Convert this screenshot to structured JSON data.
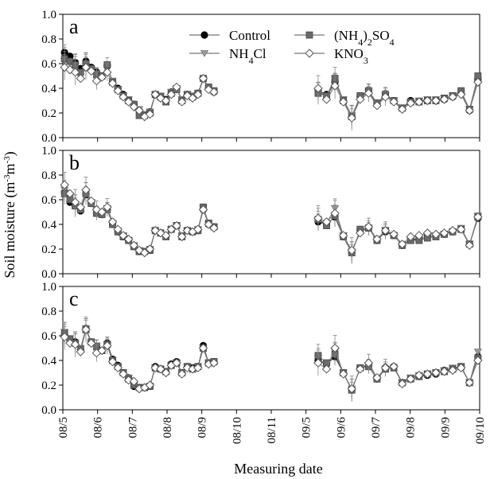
{
  "figure": {
    "ylabel_html": "Soil moisture (m<tspan baseline-shift='super' font-size='11'>-3</tspan>m<tspan baseline-shift='super' font-size='11'>-3</tspan>)",
    "ylabel": "Soil moisture (m-3m-3)",
    "xlabel": "Measuring date"
  },
  "legend": {
    "control": "Control",
    "nh4cl": "NH4Cl",
    "nh42so4": "(NH4)2SO4",
    "kno3": "KNO3"
  },
  "colors": {
    "control": "#000000",
    "nh4cl": "#9a9a9a",
    "nh42so4": "#6a6a6a",
    "kno3": "#ffffff",
    "line": "#555555"
  },
  "chart_data": {
    "type": "line",
    "x_ticks": [
      "08/5",
      "08/6",
      "08/7",
      "08/8",
      "08/9",
      "08/10",
      "08/11",
      "09/5",
      "09/6",
      "09/7",
      "09/8",
      "09/9",
      "09/10"
    ],
    "y_ticks": [
      0.0,
      0.2,
      0.4,
      0.6,
      0.8,
      1.0
    ],
    "ylim": [
      0,
      1.0
    ],
    "legend_position": "top",
    "panels": [
      {
        "label": "a",
        "series": [
          {
            "name": "Control",
            "marker": "circle-black",
            "seg1": [
              0.69,
              0.66,
              0.61,
              0.56,
              0.62,
              0.57,
              0.53,
              0.5,
              0.58,
              0.45,
              0.4,
              0.35,
              0.3,
              0.27,
              0.22,
              0.18,
              0.21,
              0.35,
              0.33,
              0.31,
              0.37,
              0.4,
              0.3,
              0.35,
              0.33,
              0.36,
              0.48,
              0.4,
              0.37
            ],
            "seg2": [
              0.38,
              0.35,
              0.45,
              0.3,
              0.17,
              0.33,
              0.38,
              0.28,
              0.35,
              0.3,
              0.24,
              0.3,
              0.29,
              0.3,
              0.3,
              0.31,
              0.33,
              0.36,
              0.22,
              0.47
            ]
          },
          {
            "name": "NH4Cl",
            "marker": "triangle-gray",
            "seg1": [
              0.62,
              0.6,
              0.58,
              0.52,
              0.58,
              0.55,
              0.52,
              0.5,
              0.57,
              0.46,
              0.39,
              0.34,
              0.31,
              0.26,
              0.23,
              0.19,
              0.21,
              0.35,
              0.34,
              0.3,
              0.37,
              0.4,
              0.31,
              0.35,
              0.34,
              0.35,
              0.47,
              0.4,
              0.37
            ],
            "seg2": [
              0.37,
              0.33,
              0.44,
              0.31,
              0.18,
              0.32,
              0.37,
              0.27,
              0.34,
              0.3,
              0.24,
              0.29,
              0.3,
              0.31,
              0.31,
              0.32,
              0.34,
              0.36,
              0.23,
              0.46
            ]
          },
          {
            "name": "(NH4)2SO4",
            "marker": "square-gray",
            "seg1": [
              0.64,
              0.62,
              0.59,
              0.53,
              0.6,
              0.56,
              0.51,
              0.5,
              0.59,
              0.45,
              0.39,
              0.34,
              0.3,
              0.27,
              0.18,
              0.18,
              0.2,
              0.35,
              0.33,
              0.29,
              0.36,
              0.39,
              0.3,
              0.35,
              0.33,
              0.36,
              0.48,
              0.41,
              0.38
            ],
            "seg2": [
              0.36,
              0.34,
              0.48,
              0.3,
              0.17,
              0.34,
              0.38,
              0.28,
              0.35,
              0.3,
              0.24,
              0.29,
              0.29,
              0.3,
              0.3,
              0.32,
              0.34,
              0.38,
              0.23,
              0.5
            ]
          },
          {
            "name": "KNO3",
            "marker": "diamond-white",
            "seg1": [
              0.57,
              0.55,
              0.53,
              0.48,
              0.57,
              0.54,
              0.46,
              0.49,
              0.53,
              0.44,
              0.38,
              0.33,
              0.29,
              0.25,
              0.22,
              0.17,
              0.19,
              0.35,
              0.32,
              0.3,
              0.35,
              0.41,
              0.29,
              0.34,
              0.32,
              0.35,
              0.48,
              0.39,
              0.37
            ],
            "seg2": [
              0.4,
              0.31,
              0.42,
              0.29,
              0.16,
              0.31,
              0.36,
              0.26,
              0.33,
              0.29,
              0.23,
              0.28,
              0.29,
              0.3,
              0.3,
              0.31,
              0.33,
              0.35,
              0.22,
              0.45
            ]
          }
        ]
      },
      {
        "label": "b",
        "series": [
          {
            "name": "Control",
            "marker": "circle-black",
            "seg1": [
              0.66,
              0.58,
              0.55,
              0.51,
              0.64,
              0.57,
              0.49,
              0.48,
              0.52,
              0.4,
              0.34,
              0.3,
              0.27,
              0.22,
              0.18,
              0.18,
              0.19,
              0.35,
              0.33,
              0.31,
              0.36,
              0.39,
              0.3,
              0.35,
              0.34,
              0.35,
              0.52,
              0.4,
              0.38
            ],
            "seg2": [
              0.42,
              0.4,
              0.46,
              0.3,
              0.17,
              0.35,
              0.37,
              0.27,
              0.34,
              0.31,
              0.23,
              0.28,
              0.28,
              0.3,
              0.31,
              0.32,
              0.34,
              0.36,
              0.24,
              0.45
            ]
          },
          {
            "name": "NH4Cl",
            "marker": "triangle-gray",
            "seg1": [
              0.68,
              0.62,
              0.56,
              0.52,
              0.66,
              0.58,
              0.5,
              0.49,
              0.53,
              0.41,
              0.35,
              0.31,
              0.27,
              0.23,
              0.19,
              0.18,
              0.2,
              0.35,
              0.33,
              0.31,
              0.36,
              0.39,
              0.31,
              0.35,
              0.34,
              0.36,
              0.53,
              0.4,
              0.38
            ],
            "seg2": [
              0.43,
              0.41,
              0.53,
              0.31,
              0.18,
              0.34,
              0.37,
              0.28,
              0.35,
              0.31,
              0.24,
              0.27,
              0.28,
              0.3,
              0.31,
              0.32,
              0.34,
              0.37,
              0.24,
              0.47
            ]
          },
          {
            "name": "(NH4)2SO4",
            "marker": "square-gray",
            "seg1": [
              0.65,
              0.6,
              0.55,
              0.52,
              0.65,
              0.57,
              0.49,
              0.48,
              0.52,
              0.4,
              0.34,
              0.3,
              0.27,
              0.22,
              0.18,
              0.18,
              0.19,
              0.35,
              0.33,
              0.3,
              0.36,
              0.39,
              0.3,
              0.35,
              0.34,
              0.35,
              0.54,
              0.41,
              0.38
            ],
            "seg2": [
              0.44,
              0.39,
              0.47,
              0.3,
              0.17,
              0.36,
              0.37,
              0.27,
              0.35,
              0.31,
              0.23,
              0.27,
              0.27,
              0.29,
              0.3,
              0.32,
              0.34,
              0.36,
              0.24,
              0.46
            ]
          },
          {
            "name": "KNO3",
            "marker": "diamond-white",
            "seg1": [
              0.72,
              0.65,
              0.58,
              0.54,
              0.68,
              0.59,
              0.52,
              0.5,
              0.54,
              0.42,
              0.36,
              0.31,
              0.28,
              0.23,
              0.19,
              0.17,
              0.2,
              0.35,
              0.33,
              0.31,
              0.36,
              0.39,
              0.3,
              0.35,
              0.34,
              0.36,
              0.52,
              0.4,
              0.37
            ],
            "seg2": [
              0.45,
              0.42,
              0.49,
              0.31,
              0.19,
              0.33,
              0.38,
              0.28,
              0.35,
              0.32,
              0.24,
              0.3,
              0.31,
              0.33,
              0.32,
              0.33,
              0.35,
              0.36,
              0.23,
              0.46
            ]
          }
        ]
      },
      {
        "label": "c",
        "series": [
          {
            "name": "Control",
            "marker": "circle-black",
            "seg1": [
              0.61,
              0.57,
              0.55,
              0.49,
              0.66,
              0.55,
              0.51,
              0.48,
              0.54,
              0.41,
              0.36,
              0.3,
              0.26,
              0.19,
              0.18,
              0.18,
              0.19,
              0.35,
              0.33,
              0.31,
              0.37,
              0.39,
              0.3,
              0.35,
              0.34,
              0.35,
              0.52,
              0.38,
              0.39
            ],
            "seg2": [
              0.4,
              0.37,
              0.43,
              0.3,
              0.16,
              0.34,
              0.36,
              0.25,
              0.34,
              0.35,
              0.22,
              0.25,
              0.27,
              0.28,
              0.29,
              0.32,
              0.33,
              0.35,
              0.22,
              0.43
            ]
          },
          {
            "name": "NH4Cl",
            "marker": "triangle-gray",
            "seg1": [
              0.63,
              0.58,
              0.54,
              0.5,
              0.66,
              0.54,
              0.52,
              0.48,
              0.53,
              0.4,
              0.35,
              0.3,
              0.26,
              0.2,
              0.18,
              0.18,
              0.19,
              0.34,
              0.33,
              0.31,
              0.36,
              0.38,
              0.3,
              0.35,
              0.33,
              0.35,
              0.5,
              0.38,
              0.39
            ],
            "seg2": [
              0.42,
              0.36,
              0.47,
              0.3,
              0.17,
              0.33,
              0.36,
              0.25,
              0.33,
              0.34,
              0.22,
              0.26,
              0.28,
              0.29,
              0.3,
              0.32,
              0.34,
              0.35,
              0.22,
              0.47
            ]
          },
          {
            "name": "(NH4)2SO4",
            "marker": "square-gray",
            "seg1": [
              0.62,
              0.57,
              0.54,
              0.49,
              0.65,
              0.55,
              0.51,
              0.48,
              0.53,
              0.4,
              0.35,
              0.3,
              0.25,
              0.2,
              0.18,
              0.18,
              0.19,
              0.34,
              0.33,
              0.31,
              0.36,
              0.38,
              0.3,
              0.35,
              0.33,
              0.35,
              0.5,
              0.38,
              0.39
            ],
            "seg2": [
              0.44,
              0.38,
              0.45,
              0.3,
              0.16,
              0.34,
              0.35,
              0.25,
              0.33,
              0.34,
              0.22,
              0.25,
              0.27,
              0.29,
              0.3,
              0.31,
              0.33,
              0.35,
              0.22,
              0.42
            ]
          },
          {
            "name": "KNO3",
            "marker": "diamond-white",
            "seg1": [
              0.59,
              0.54,
              0.53,
              0.47,
              0.65,
              0.54,
              0.46,
              0.48,
              0.52,
              0.39,
              0.34,
              0.29,
              0.24,
              0.23,
              0.17,
              0.18,
              0.2,
              0.34,
              0.33,
              0.3,
              0.36,
              0.38,
              0.29,
              0.34,
              0.33,
              0.34,
              0.5,
              0.37,
              0.38
            ],
            "seg2": [
              0.38,
              0.33,
              0.5,
              0.29,
              0.17,
              0.33,
              0.38,
              0.26,
              0.34,
              0.35,
              0.21,
              0.25,
              0.28,
              0.29,
              0.3,
              0.31,
              0.32,
              0.34,
              0.22,
              0.4
            ]
          }
        ]
      }
    ]
  }
}
